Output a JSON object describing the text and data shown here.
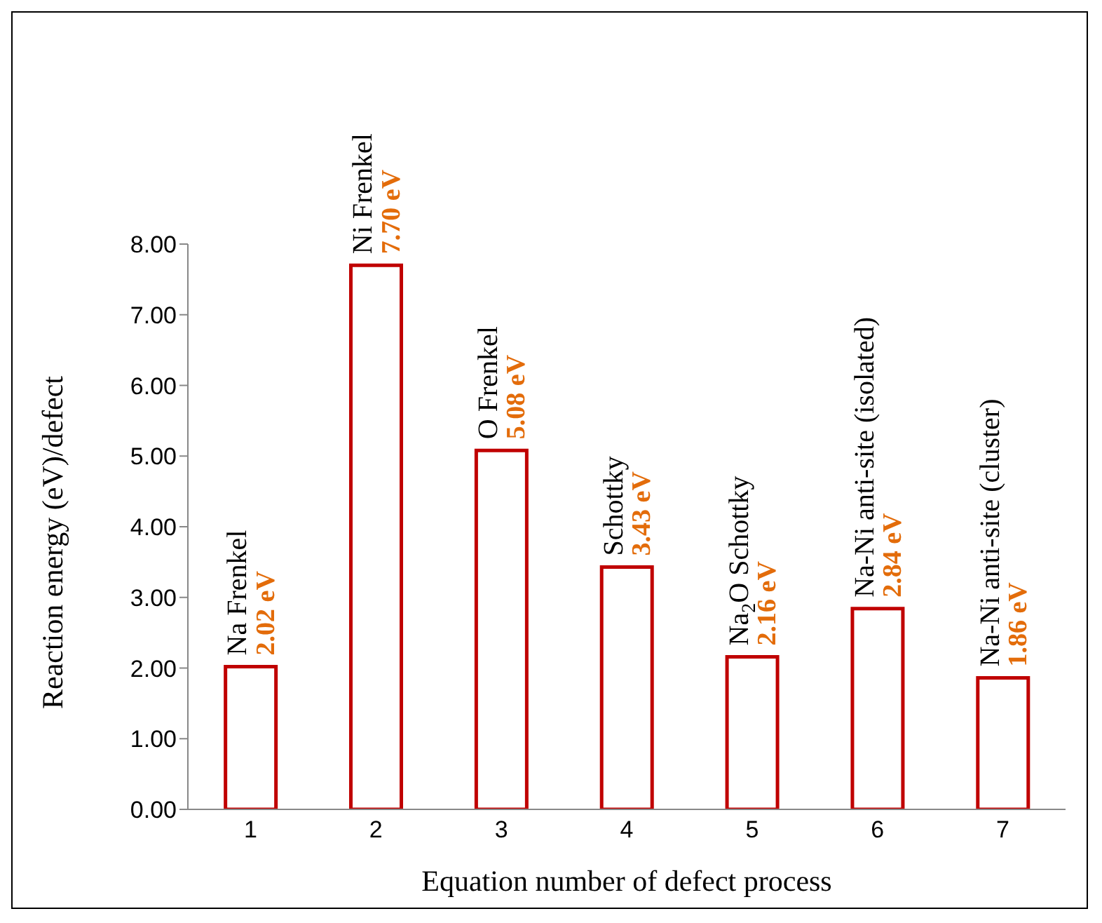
{
  "chart_data": {
    "type": "bar",
    "xlabel": "Equation number of  defect process",
    "ylabel": "Reaction energy (eV)/defect",
    "categories": [
      "1",
      "2",
      "3",
      "4",
      "5",
      "6",
      "7"
    ],
    "values": [
      2.02,
      7.7,
      5.08,
      3.43,
      2.16,
      2.84,
      1.86
    ],
    "color": "#c00000",
    "value_labels": [
      "2.02 eV",
      "7.70 eV",
      "5.08 eV",
      "3.43 eV",
      "2.16 eV",
      "2.84 eV",
      "1.86 eV"
    ],
    "ylim": [
      0,
      8
    ],
    "yticks": [
      {
        "value": 0,
        "label": "0.00"
      },
      {
        "value": 1,
        "label": "1.00"
      },
      {
        "value": 2,
        "label": "2.00"
      },
      {
        "value": 3,
        "label": "3.00"
      },
      {
        "value": 4,
        "label": "4.00"
      },
      {
        "value": 5,
        "label": "5.00"
      },
      {
        "value": 6,
        "label": "6.00"
      },
      {
        "value": 7,
        "label": "7.00"
      },
      {
        "value": 8,
        "label": "8.00"
      }
    ],
    "grid": false,
    "annotations": [
      {
        "text": "Na Frenkel",
        "x": "1",
        "y": 2.02
      },
      {
        "text": "Ni Frenkel",
        "x": "2",
        "y": 7.7
      },
      {
        "text": "O Frenkel",
        "x": "3",
        "y": 5.08
      },
      {
        "text": "Schottky",
        "x": "4",
        "y": 3.43
      },
      {
        "text": "Na$_{2}$O Schottky",
        "x": "5",
        "y": 2.16
      },
      {
        "text": "Na-Ni anti-site (isolated)",
        "x": "6",
        "y": 2.84
      },
      {
        "text": "Na-Ni anti-site (cluster)",
        "x": "7",
        "y": 1.86
      }
    ]
  }
}
